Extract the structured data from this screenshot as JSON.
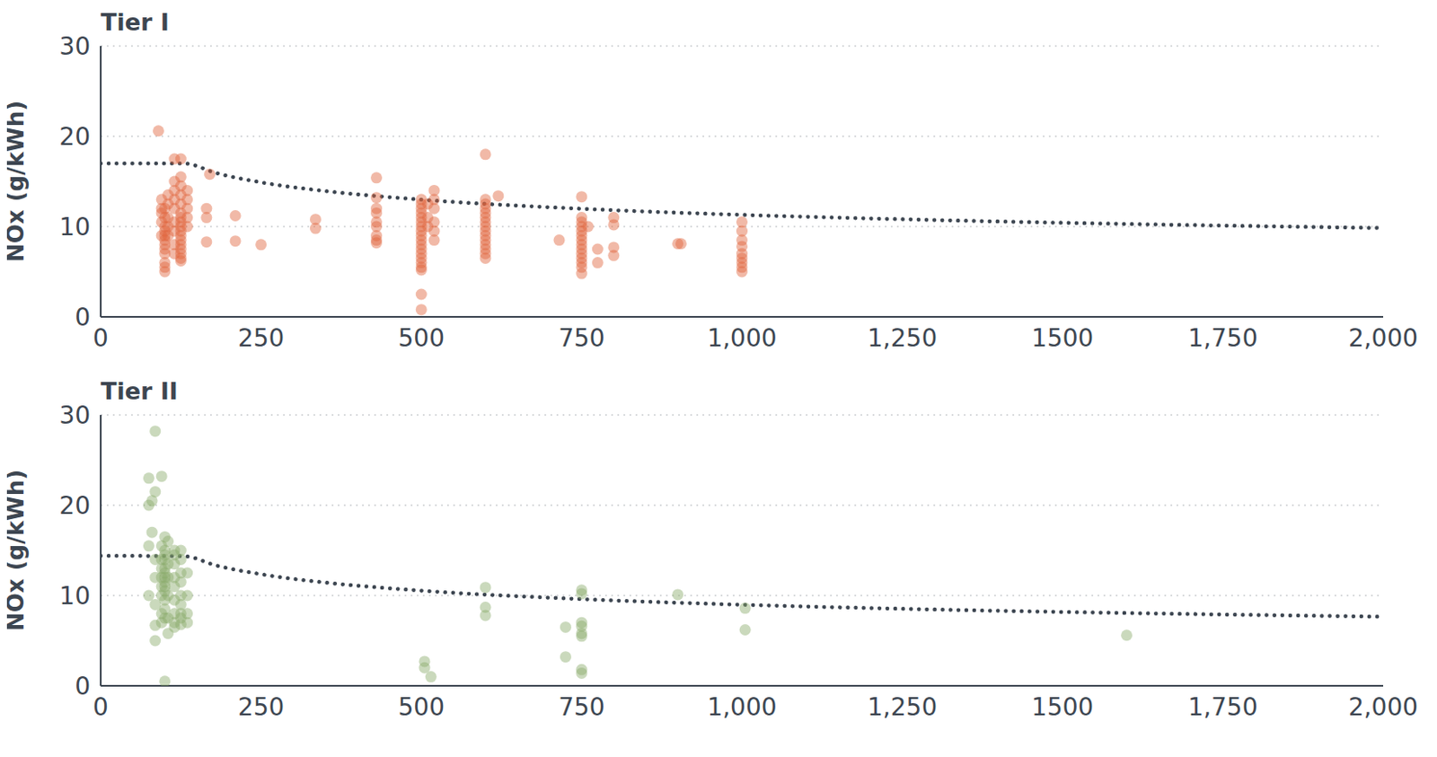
{
  "chart_data": [
    {
      "type": "scatter",
      "title": "Tier I",
      "y_label": "NOx (g/kWh)",
      "xlim": [
        0,
        2000
      ],
      "xticks": [
        0,
        250,
        500,
        750,
        {
          "value": 1000,
          "label": "1,000"
        },
        {
          "value": 1250,
          "label": "1,250"
        },
        1500,
        {
          "value": 1750,
          "label": "1,750"
        },
        {
          "value": 2000,
          "label": "2,000"
        }
      ],
      "ylim": [
        0,
        30
      ],
      "yticks": [
        0,
        10,
        20,
        30
      ],
      "grid": true,
      "series": [
        {
          "type": "scatter",
          "color": "#e0643c",
          "marker": "circle",
          "x": [
            90,
            95,
            95,
            95,
            95,
            95,
            100,
            100,
            100,
            100,
            100,
            100,
            100,
            100,
            100,
            100,
            100,
            100,
            105,
            105,
            105,
            105,
            105,
            115,
            115,
            115,
            115,
            115,
            115,
            115,
            115,
            115,
            125,
            125,
            125,
            125,
            125,
            125,
            125,
            125,
            125,
            125,
            125,
            125,
            125,
            125,
            125,
            125,
            125,
            135,
            135,
            135,
            135,
            135,
            170,
            165,
            165,
            165,
            210,
            210,
            250,
            335,
            335,
            430,
            430,
            430,
            430,
            430,
            430,
            430,
            430,
            430,
            500,
            500,
            500,
            500,
            500,
            500,
            500,
            500,
            500,
            500,
            500,
            500,
            500,
            500,
            500,
            500,
            500,
            500,
            500,
            510,
            510,
            510,
            520,
            520,
            520,
            520,
            520,
            520,
            600,
            600,
            600,
            600,
            600,
            600,
            600,
            600,
            600,
            600,
            600,
            600,
            600,
            600,
            600,
            620,
            715,
            750,
            750,
            750,
            750,
            750,
            750,
            750,
            750,
            750,
            750,
            750,
            750,
            750,
            750,
            760,
            775,
            775,
            800,
            800,
            800,
            800,
            900,
            905,
            1000,
            1000,
            1000,
            1000,
            1000,
            1000,
            1000,
            1000,
            1000
          ],
          "values": [
            20.6,
            13,
            12,
            11.5,
            10.5,
            9,
            12,
            11,
            10,
            9.5,
            9,
            8.5,
            8,
            7.5,
            7,
            6,
            5.5,
            5,
            13.5,
            12.5,
            11,
            10,
            9,
            17.5,
            15,
            14,
            13,
            12,
            10.5,
            9.5,
            8,
            7,
            17.5,
            15.5,
            14.5,
            13.5,
            12.5,
            11.5,
            11,
            10.5,
            10,
            9.5,
            9,
            8.5,
            8,
            7.5,
            7,
            6.5,
            6.2,
            14,
            13,
            12,
            11,
            10,
            15.8,
            12,
            11,
            8.3,
            11.2,
            8.4,
            8,
            10.8,
            9.8,
            15.4,
            13.2,
            12,
            11.5,
            10.5,
            10,
            9,
            8.5,
            8.2,
            13,
            12.5,
            12,
            11.5,
            11,
            10.5,
            10,
            9.5,
            9,
            8.5,
            8,
            7.5,
            7,
            6.5,
            6,
            5.5,
            5.2,
            2.5,
            0.8,
            12.5,
            11,
            10,
            14,
            13,
            12,
            10.5,
            9.5,
            8.5,
            18,
            13,
            12.5,
            12,
            11.5,
            11,
            10.5,
            10,
            9.5,
            9,
            8.5,
            8,
            7.5,
            7,
            6.5,
            13.4,
            8.5,
            13.3,
            11,
            10.5,
            10,
            9.5,
            9,
            8.5,
            8,
            7.5,
            7,
            6.5,
            6,
            5.5,
            4.8,
            10,
            7.5,
            6,
            11,
            10.2,
            7.7,
            6.8,
            8.1,
            8.1,
            10.5,
            9.5,
            8.5,
            7.8,
            7,
            6.5,
            6,
            5.5,
            5
          ]
        },
        {
          "type": "line",
          "color": "#3d4651",
          "line_style": "dotted",
          "x": [
            0,
            130,
            180,
            250,
            350,
            500,
            750,
            1000,
            1250,
            1500,
            1750,
            2000
          ],
          "values": [
            17,
            17,
            15.93,
            14.9,
            13.94,
            12.98,
            11.97,
            11.3,
            10.81,
            10.42,
            10.11,
            9.84
          ]
        }
      ]
    },
    {
      "type": "scatter",
      "title": "Tier II",
      "y_label": "NOx (g/kWh)",
      "xlim": [
        0,
        2000
      ],
      "xticks": [
        0,
        250,
        500,
        750,
        {
          "value": 1000,
          "label": "1,000"
        },
        {
          "value": 1250,
          "label": "1,250"
        },
        1500,
        {
          "value": 1750,
          "label": "1,750"
        },
        {
          "value": 2000,
          "label": "2,000"
        }
      ],
      "ylim": [
        0,
        30
      ],
      "yticks": [
        0,
        10,
        20,
        30
      ],
      "grid": true,
      "series": [
        {
          "type": "scatter",
          "color": "#8aab6a",
          "marker": "circle",
          "x": [
            75,
            75,
            75,
            75,
            80,
            80,
            85,
            85,
            85,
            85,
            85,
            85,
            85,
            95,
            95,
            95,
            95,
            95,
            95,
            95,
            95,
            95,
            100,
            100,
            100,
            100,
            100,
            100,
            100,
            100,
            100,
            100,
            100,
            100,
            100,
            100,
            105,
            105,
            105,
            105,
            105,
            105,
            115,
            115,
            115,
            115,
            115,
            115,
            115,
            115,
            115,
            125,
            125,
            125,
            125,
            125,
            125,
            125,
            125,
            125,
            135,
            135,
            135,
            135,
            505,
            505,
            515,
            600,
            600,
            600,
            725,
            725,
            750,
            750,
            750,
            750,
            750,
            750,
            750,
            750,
            900,
            1005,
            1005,
            1600
          ],
          "values": [
            23,
            20,
            15.5,
            10,
            20.5,
            17,
            28.2,
            21.5,
            14,
            12,
            9,
            6.7,
            5,
            23.2,
            15.5,
            14,
            13,
            12,
            11,
            10,
            8,
            7,
            16.5,
            15,
            14.5,
            14,
            13,
            12.5,
            12,
            11.5,
            11,
            10.5,
            9.5,
            8.5,
            7.5,
            0.5,
            16,
            13.5,
            12,
            10,
            7.5,
            5.8,
            15,
            14.5,
            13.5,
            12,
            11,
            9.5,
            8,
            7,
            6.5,
            15,
            14,
            12.5,
            11.5,
            10,
            9,
            8,
            7.5,
            6.8,
            12.5,
            10,
            8,
            7,
            2.7,
            2,
            1,
            10.9,
            8.7,
            7.8,
            6.5,
            3.2,
            10.6,
            10.2,
            7,
            6.6,
            5.8,
            5.5,
            1.8,
            1.4,
            10.1,
            8.6,
            6.2,
            5.6
          ]
        },
        {
          "type": "line",
          "color": "#3d4651",
          "line_style": "dotted",
          "x": [
            0,
            130,
            180,
            250,
            350,
            500,
            750,
            1000,
            1250,
            1500,
            1750,
            2000
          ],
          "values": [
            14.4,
            14.36,
            13.33,
            12.36,
            11.44,
            10.54,
            9.6,
            8.98,
            8.53,
            8.18,
            7.9,
            7.66
          ]
        }
      ]
    }
  ]
}
